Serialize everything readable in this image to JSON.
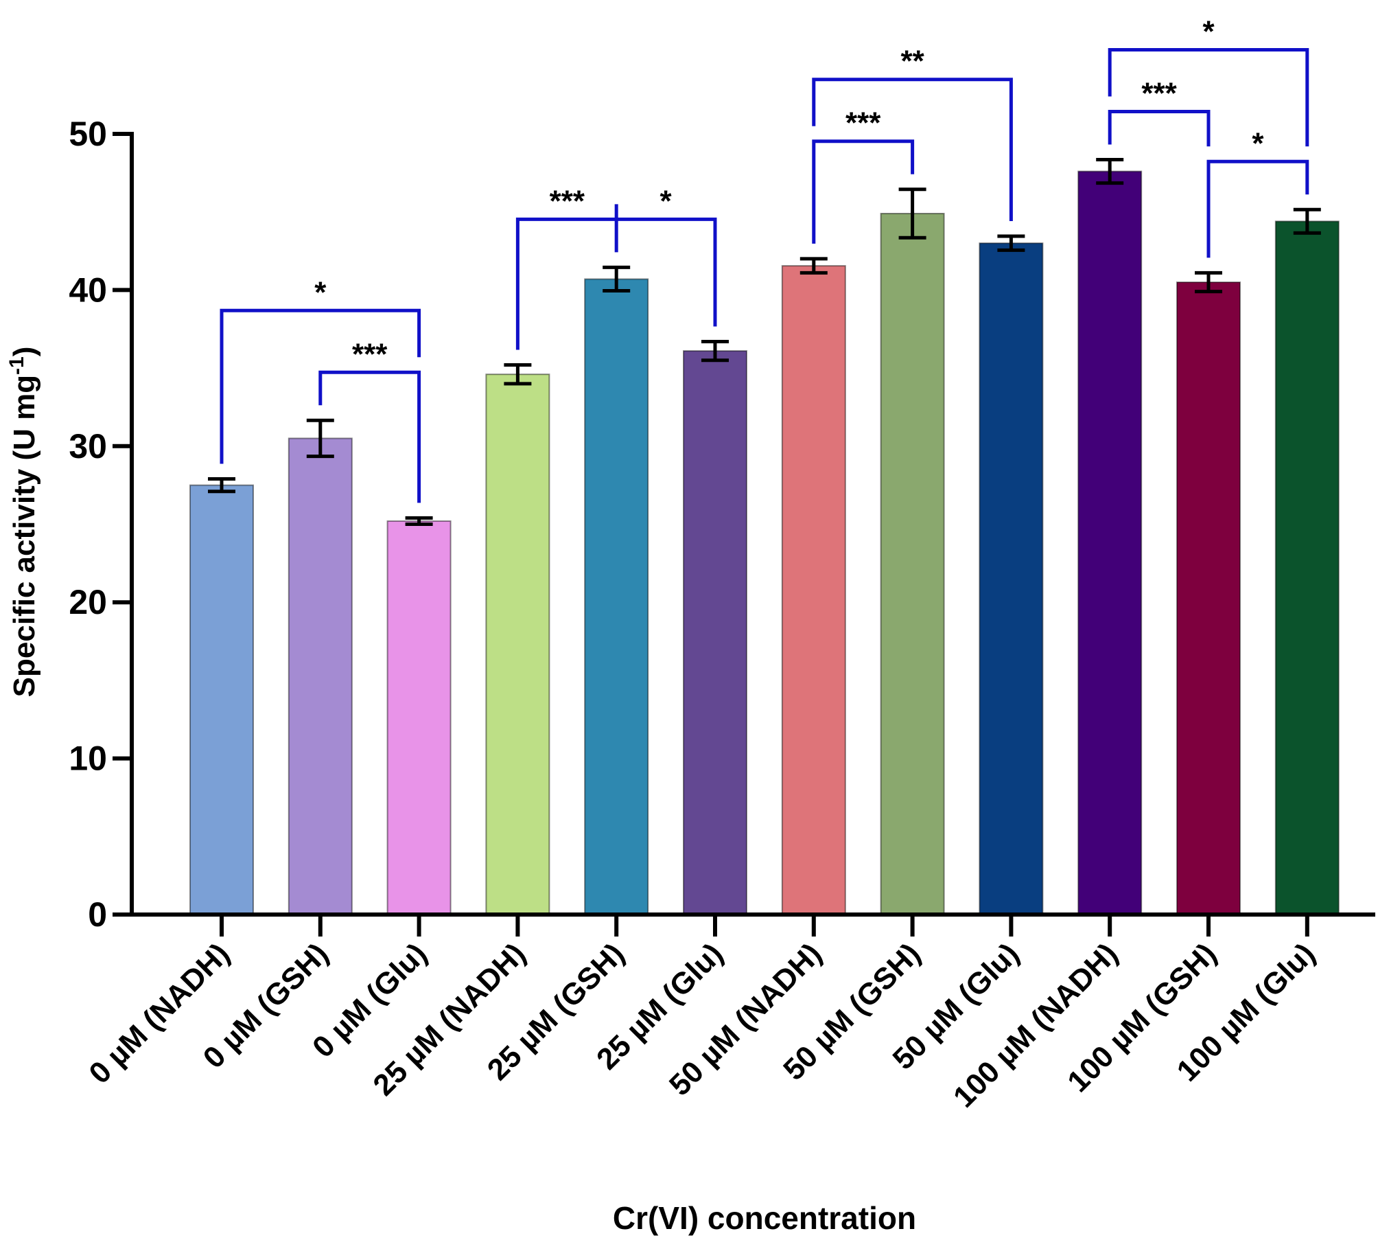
{
  "chart_data": {
    "type": "bar",
    "x_label": "Cr(VI) concentration",
    "y_label": {
      "text": "Specific activity (U mg",
      "sup": "-1",
      "end": ")"
    },
    "categories": [
      "0 µM (NADH)",
      "0 µM (GSH)",
      "0 µM (Glu)",
      "25 µM (NADH)",
      "25 µM (GSH)",
      "25 µM (Glu)",
      "50 µM (NADH)",
      "50 µM (GSH)",
      "50 µM (Glu)",
      "100 µM (NADH)",
      "100 µM (GSH)",
      "100 µM (Glu)"
    ],
    "values": [
      27.5,
      30.5,
      25.2,
      34.6,
      40.7,
      36.1,
      41.55,
      44.9,
      43.0,
      47.6,
      40.5,
      44.4
    ],
    "errors": [
      0.4,
      1.15,
      0.2,
      0.6,
      0.75,
      0.6,
      0.45,
      1.55,
      0.45,
      0.75,
      0.6,
      0.75
    ],
    "colors": [
      "#7ba0d6",
      "#a48bd2",
      "#e893e8",
      "#bddf86",
      "#2e88b0",
      "#634892",
      "#de7479",
      "#8aa86e",
      "#093e80",
      "#420078",
      "#7e003e",
      "#0b532c"
    ],
    "ylim": [
      0,
      50
    ],
    "yticks": [
      0,
      10,
      20,
      30,
      40,
      50
    ],
    "significance": [
      {
        "from": 1,
        "to": 2,
        "label": "***"
      },
      {
        "from": 0,
        "to": 2,
        "label": "*"
      },
      {
        "from": 3,
        "to": 4,
        "label": "***"
      },
      {
        "from": 4,
        "to": 5,
        "label": "*"
      },
      {
        "from": 6,
        "to": 7,
        "label": "***"
      },
      {
        "from": 6,
        "to": 8,
        "label": "**"
      },
      {
        "from": 10,
        "to": 11,
        "label": "*"
      },
      {
        "from": 9,
        "to": 10,
        "label": "***"
      },
      {
        "from": 9,
        "to": 11,
        "label": "*"
      }
    ]
  }
}
